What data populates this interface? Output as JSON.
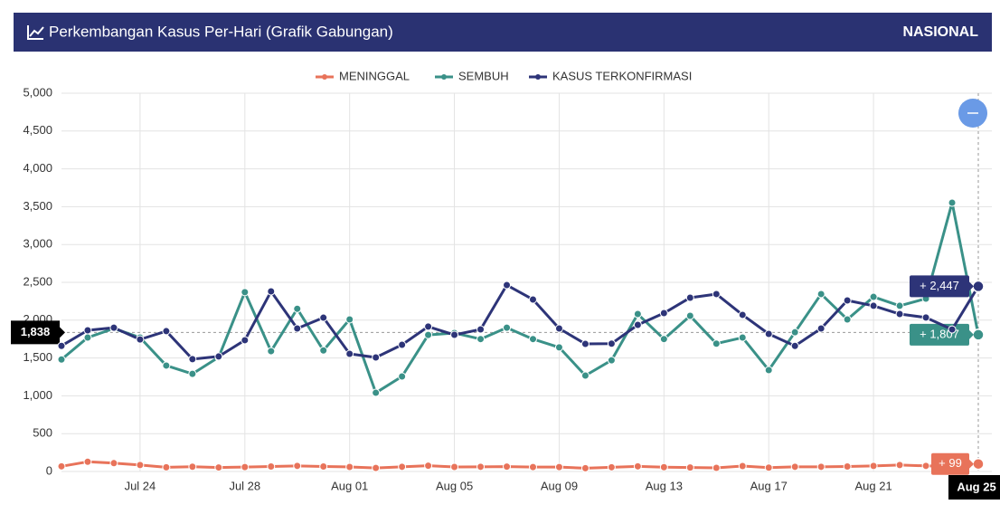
{
  "header": {
    "title": "Perkembangan Kasus Per-Hari (Grafik Gabungan)",
    "region": "NASIONAL"
  },
  "chart_data": {
    "type": "line",
    "categories": [
      null,
      null,
      null,
      "Jul 24",
      null,
      null,
      null,
      "Jul 28",
      null,
      null,
      null,
      "Aug 01",
      null,
      null,
      null,
      "Aug 05",
      null,
      null,
      null,
      "Aug 09",
      null,
      null,
      null,
      "Aug 13",
      null,
      null,
      null,
      "Aug 17",
      null,
      null,
      null,
      "Aug 21",
      null,
      null,
      null,
      "Aug 25"
    ],
    "highlight_index": 35,
    "series": [
      {
        "name": "MENINGGAL",
        "color": "#e8735a",
        "values": [
          68,
          128,
          110,
          85,
          55,
          63,
          53,
          58,
          66,
          74,
          66,
          60,
          46,
          62,
          76,
          60,
          62,
          64,
          58,
          58,
          43,
          56,
          68,
          57,
          52,
          48,
          72,
          51,
          62,
          62,
          66,
          73,
          85,
          74,
          70,
          99
        ],
        "value_labels": [
          null,
          null,
          null,
          null,
          null,
          null,
          null,
          null,
          null,
          null,
          null,
          null,
          null,
          null,
          null,
          null,
          null,
          null,
          null,
          null,
          null,
          null,
          null,
          null,
          null,
          null,
          null,
          null,
          null,
          null,
          null,
          null,
          null,
          null,
          null,
          "+ 99"
        ]
      },
      {
        "name": "SEMBUH",
        "color": "#3a9188",
        "values": [
          1480,
          1770,
          1890,
          1770,
          1400,
          1290,
          1510,
          2370,
          1590,
          2150,
          1600,
          2010,
          1040,
          1256,
          1805,
          1830,
          1750,
          1900,
          1750,
          1640,
          1268,
          1470,
          2081,
          1750,
          2057,
          1690,
          1770,
          1340,
          1840,
          2345,
          2010,
          2308,
          2190,
          2285,
          3553,
          1807
        ],
        "value_labels": [
          null,
          null,
          null,
          null,
          null,
          null,
          null,
          null,
          null,
          null,
          null,
          null,
          null,
          null,
          null,
          null,
          null,
          null,
          null,
          null,
          null,
          null,
          null,
          null,
          null,
          null,
          null,
          null,
          null,
          null,
          null,
          null,
          null,
          null,
          null,
          "+ 1,807"
        ]
      },
      {
        "name": "KASUS TERKONFIRMASI",
        "color": "#2d3478",
        "values": [
          1660,
          1866,
          1900,
          1745,
          1855,
          1485,
          1520,
          1735,
          2380,
          1890,
          2033,
          1555,
          1507,
          1675,
          1915,
          1806,
          1878,
          2464,
          2273,
          1890,
          1686,
          1690,
          1938,
          2093,
          2297,
          2345,
          2070,
          1818,
          1660,
          1890,
          2261,
          2190,
          2081,
          2035,
          1877,
          2447
        ],
        "value_labels": [
          null,
          null,
          null,
          null,
          null,
          null,
          null,
          null,
          null,
          null,
          null,
          null,
          null,
          null,
          null,
          null,
          null,
          null,
          null,
          null,
          null,
          null,
          null,
          null,
          null,
          null,
          null,
          null,
          null,
          null,
          null,
          null,
          null,
          null,
          null,
          "+ 2,447"
        ]
      }
    ],
    "ylim": [
      0,
      5000
    ],
    "yticks": [
      0,
      500,
      {
        "value": 1000,
        "label": "1,000"
      },
      {
        "value": 1500,
        "label": "1,500"
      },
      {
        "value": 2000,
        "label": "2,000"
      },
      {
        "value": 2500,
        "label": "2,500"
      },
      {
        "value": 3000,
        "label": "3,000"
      },
      {
        "value": 3500,
        "label": "3,500"
      },
      {
        "value": 4000,
        "label": "4,000"
      },
      {
        "value": 4500,
        "label": "4,500"
      },
      {
        "value": 5000,
        "label": "5,000"
      }
    ],
    "crosshair": {
      "value": 1838,
      "label": "1,838"
    },
    "grid": true
  }
}
